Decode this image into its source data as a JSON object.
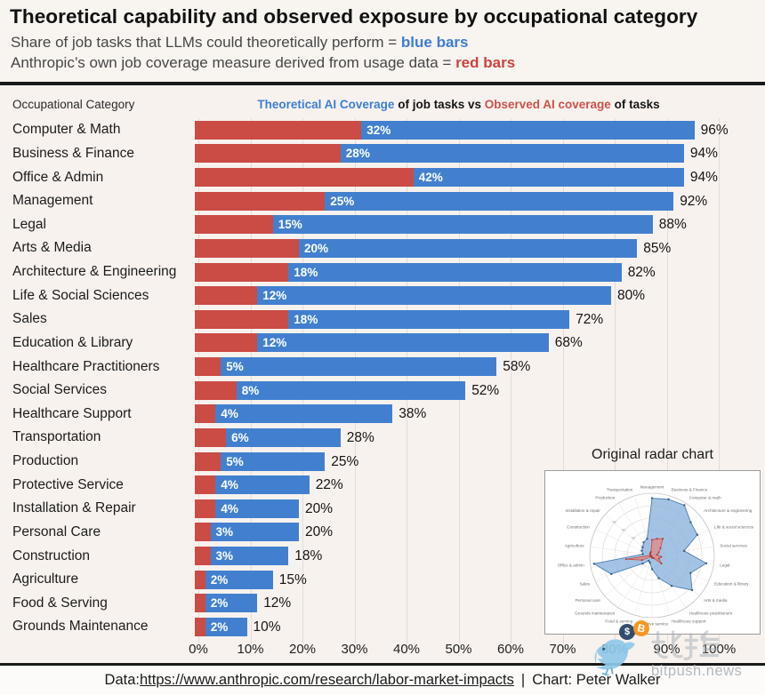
{
  "title": "Theoretical capability and observed exposure by occupational category",
  "subtitle": {
    "line1_prefix": "Share of job tasks that LLMs could theoretically perform = ",
    "line1_highlight": "blue bars",
    "line2_prefix": "Anthropic’s own job coverage measure derived from usage data = ",
    "line2_highlight": "red bars"
  },
  "chart_header": {
    "left": "Occupational Category",
    "center_blue": "Theoretical AI Coverage",
    "center_mid": " of job tasks vs ",
    "center_red": "Observed AI coverage",
    "center_end": " of tasks"
  },
  "chart_data": {
    "type": "bar",
    "orientation": "horizontal",
    "title": "Theoretical AI Coverage of job tasks vs Observed AI coverage of tasks",
    "categories": [
      "Computer & Math",
      "Business & Finance",
      "Office & Admin",
      "Management",
      "Legal",
      "Arts & Media",
      "Architecture & Engineering",
      "Life & Social Sciences",
      "Sales",
      "Education & Library",
      "Healthcare Practitioners",
      "Social Services",
      "Healthcare Support",
      "Transportation",
      "Production",
      "Protective Service",
      "Installation & Repair",
      "Personal Care",
      "Construction",
      "Agriculture",
      "Food & Serving",
      "Grounds Maintenance"
    ],
    "series": [
      {
        "name": "Theoretical AI Coverage",
        "color": "#4280cf",
        "values": [
          96,
          94,
          94,
          92,
          88,
          85,
          82,
          80,
          72,
          68,
          58,
          52,
          38,
          28,
          25,
          22,
          20,
          20,
          18,
          15,
          12,
          10
        ]
      },
      {
        "name": "Observed AI coverage",
        "color": "#cb4b45",
        "values": [
          32,
          28,
          42,
          25,
          15,
          20,
          18,
          12,
          18,
          12,
          5,
          8,
          4,
          6,
          5,
          4,
          4,
          3,
          3,
          2,
          2,
          2
        ]
      }
    ],
    "value_suffix": "%",
    "xlim": [
      0,
      100
    ],
    "x_ticks": [
      "0%",
      "10%",
      "20%",
      "30%",
      "40%",
      "50%",
      "60%",
      "70%",
      "80%",
      "90%",
      "100%"
    ],
    "grid": true,
    "legend_position": "in-subtitle"
  },
  "inset": {
    "title": "Original radar chart",
    "type": "radar",
    "labels": [
      "Management",
      "Business & Finance",
      "Computer & math",
      "Architecture & engineering",
      "Life & social sciences",
      "Social services",
      "Legal",
      "Education & library",
      "Arts & media",
      "Healthcare practitioners",
      "Healthcare support",
      "Protective service",
      "Food & serving",
      "Grounds maintenance",
      "Personal care",
      "Sales",
      "Office & admin",
      "Agriculture",
      "Construction",
      "Installation & repair",
      "Production",
      "Transportation"
    ],
    "blue_values": [
      92,
      94,
      96,
      82,
      80,
      52,
      88,
      68,
      85,
      58,
      38,
      22,
      12,
      10,
      20,
      72,
      94,
      15,
      18,
      20,
      25,
      28
    ],
    "red_values": [
      25,
      28,
      32,
      18,
      12,
      8,
      15,
      12,
      20,
      5,
      4,
      4,
      2,
      2,
      3,
      18,
      42,
      2,
      3,
      4,
      5,
      6
    ],
    "radial_ticks": [
      "20",
      "40",
      "60",
      "80"
    ]
  },
  "watermark": {
    "cjk": "比推",
    "domain": "bitpush.news",
    "coin_navy": "$",
    "coin_orange": "B"
  },
  "footer": {
    "prefix": "Data: ",
    "link": "https://www.anthropic.com/research/labor-market-impacts",
    "separator": "|",
    "credit": "Chart: Peter Walker"
  },
  "colors": {
    "blue": "#4280cf",
    "red": "#cb4b45",
    "background": "#f7f2ee",
    "header_bg": "#f8f4f0",
    "footer_bg": "#fcfbfa",
    "rule": "#191919",
    "grid": "#e3dcd7",
    "blue_text": "#3f7dd3",
    "red_text": "#c94440",
    "watermark_gray": "#b4b9bf"
  }
}
